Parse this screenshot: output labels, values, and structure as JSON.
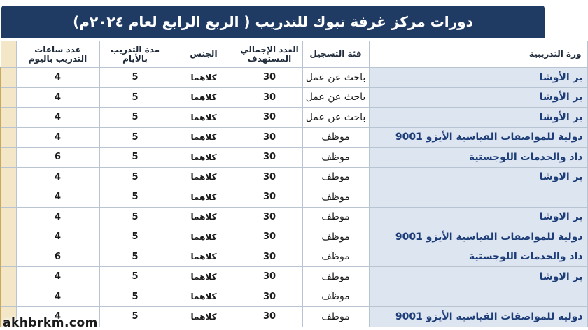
{
  "title": "دورات مركز غرفة تبوك للتدريب ( الربع الرابع لعام ٢٠٢٤م)",
  "headers": {
    "name": "ورة التدريبية",
    "category": "فئة التسجيل",
    "total": "العدد الإجمالي المستهدف",
    "gender": "الجنس",
    "days": "مدة التدريب بالأيام",
    "hours": "عدد ساعات التدريب باليوم"
  },
  "rows": [
    {
      "name": "بر الأوشا",
      "category": "باحث عن عمل",
      "total": "30",
      "gender": "كلاهما",
      "days": "5",
      "hours": "4"
    },
    {
      "name": "بر الأوشا",
      "category": "باحث عن عمل",
      "total": "30",
      "gender": "كلاهما",
      "days": "5",
      "hours": "4"
    },
    {
      "name": "بر الأوشا",
      "category": "باحث عن عمل",
      "total": "30",
      "gender": "كلاهما",
      "days": "5",
      "hours": "4"
    },
    {
      "name": "دولية للمواصفات القياسية الأيزو 9001",
      "category": "موظف",
      "total": "30",
      "gender": "كلاهما",
      "days": "5",
      "hours": "4"
    },
    {
      "name": "داد والخدمات اللوجستية",
      "category": "موظف",
      "total": "30",
      "gender": "كلاهما",
      "days": "5",
      "hours": "6"
    },
    {
      "name": "بر الاوشا",
      "category": "موظف",
      "total": "30",
      "gender": "كلاهما",
      "days": "5",
      "hours": "4"
    },
    {
      "name": "",
      "category": "موظف",
      "total": "30",
      "gender": "كلاهما",
      "days": "5",
      "hours": "4"
    },
    {
      "name": "بر الاوشا",
      "category": "موظف",
      "total": "30",
      "gender": "كلاهما",
      "days": "5",
      "hours": "4"
    },
    {
      "name": "دولية للمواصفات القياسية الأيزو 9001",
      "category": "موظف",
      "total": "30",
      "gender": "كلاهما",
      "days": "5",
      "hours": "4"
    },
    {
      "name": "داد والخدمات اللوجستية",
      "category": "موظف",
      "total": "30",
      "gender": "كلاهما",
      "days": "5",
      "hours": "6"
    },
    {
      "name": "بر الاوشا",
      "category": "موظف",
      "total": "30",
      "gender": "كلاهما",
      "days": "5",
      "hours": "4"
    },
    {
      "name": "",
      "category": "موظف",
      "total": "30",
      "gender": "كلاهما",
      "days": "5",
      "hours": "4"
    },
    {
      "name": "دولية للمواصفات القياسية الأيزو 9001",
      "category": "موظف",
      "total": "30",
      "gender": "كلاهما",
      "days": "5",
      "hours": "4"
    }
  ],
  "watermark": "akhbrkm.com",
  "colors": {
    "title_bar": "#1f3b63",
    "name_cell": "#dde5f1",
    "name_text": "#1d3d78",
    "grid_line": "#b9c4d2",
    "edge_strip": "#f3e7c8"
  }
}
